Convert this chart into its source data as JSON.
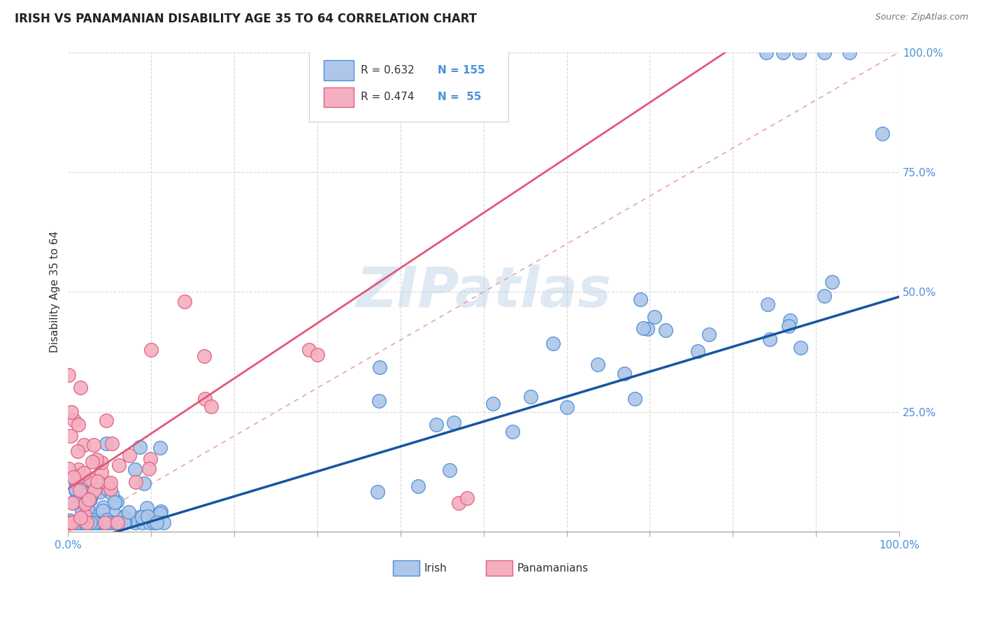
{
  "title": "IRISH VS PANAMANIAN DISABILITY AGE 35 TO 64 CORRELATION CHART",
  "source": "Source: ZipAtlas.com",
  "ylabel": "Disability Age 35 to 64",
  "irish_R": 0.632,
  "irish_N": 155,
  "pana_R": 0.474,
  "pana_N": 55,
  "watermark": "ZIPatlas",
  "irish_color": "#aec6e8",
  "irish_edge_color": "#4a90d9",
  "pana_color": "#f4afc0",
  "pana_edge_color": "#e06080",
  "irish_line_color": "#1555a0",
  "pana_line_color": "#e05878",
  "dash_line_color": "#e8a0b0",
  "background_color": "#ffffff",
  "tick_color": "#4a90d9",
  "grid_color": "#d8d8d8",
  "grid_style": "--"
}
